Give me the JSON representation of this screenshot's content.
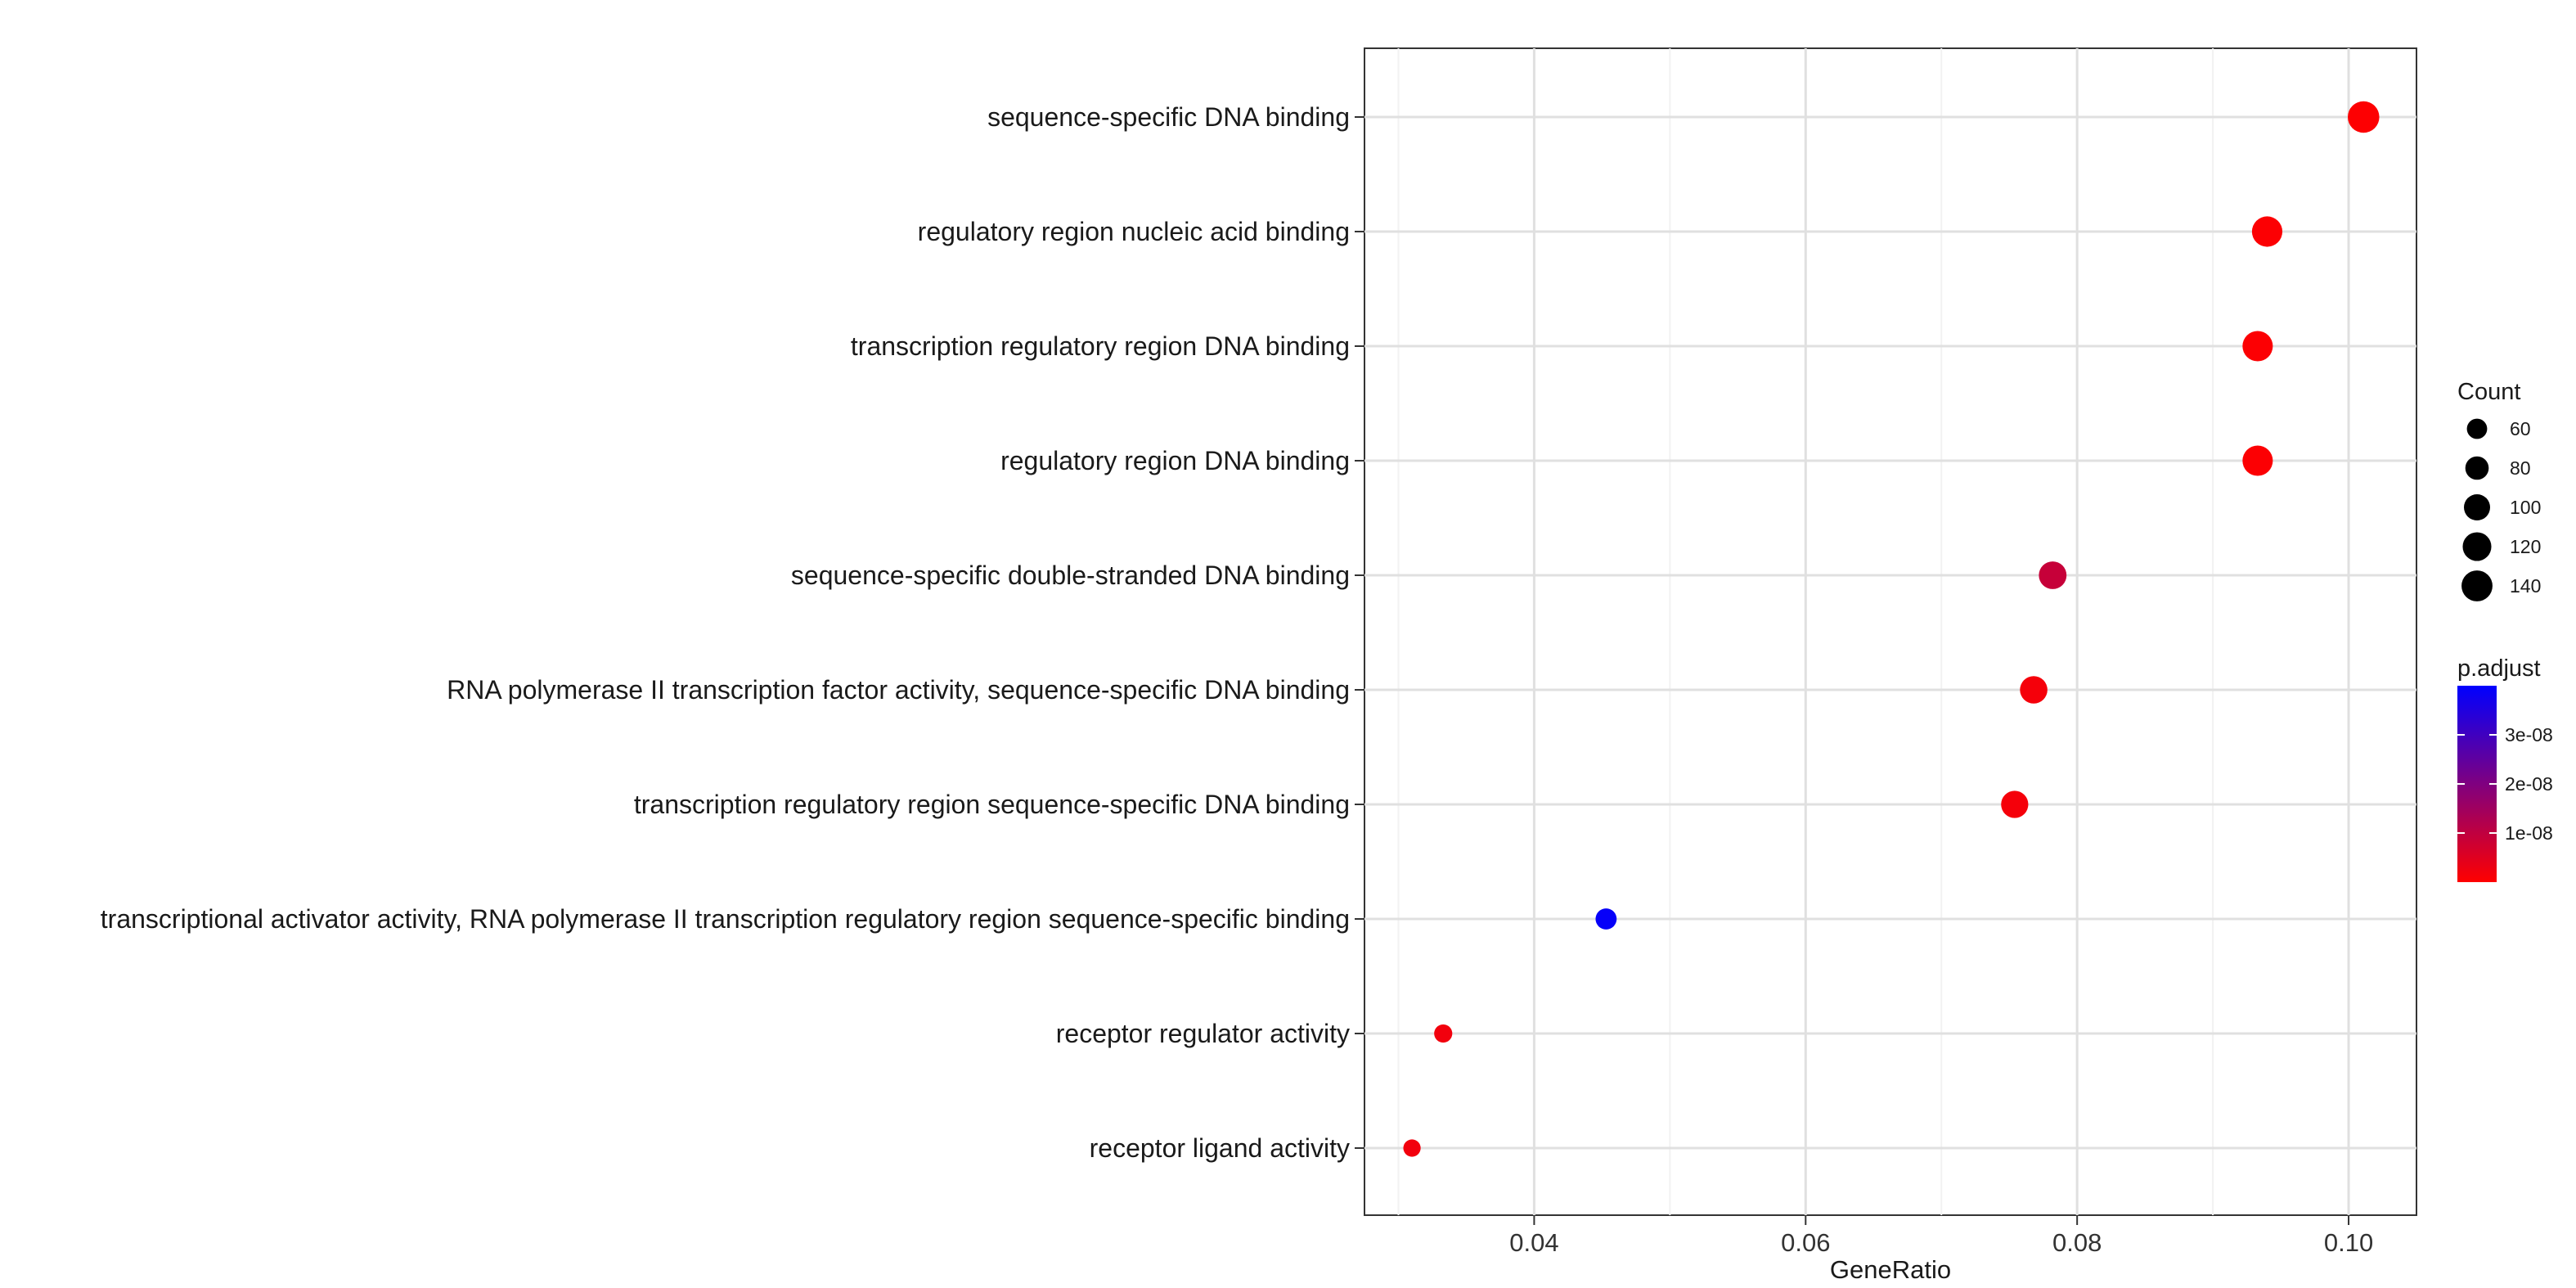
{
  "chart_data": {
    "type": "scatter",
    "xlabel": "GeneRatio",
    "ylabel": "",
    "xlim": [
      0.0275,
      0.105
    ],
    "x_ticks": [
      "0.04",
      "0.06",
      "0.08",
      "0.10"
    ],
    "grid": true,
    "legend_position": "right",
    "categories": [
      "sequence-specific DNA binding",
      "regulatory region nucleic acid binding",
      "transcription regulatory region DNA binding",
      "regulatory region DNA binding",
      "sequence-specific double-stranded DNA binding",
      "RNA polymerase II transcription factor activity, sequence-specific DNA binding",
      "transcription regulatory region sequence-specific DNA binding",
      "transcriptional activator activity, RNA polymerase II transcription regulatory region sequence-specific binding",
      "receptor regulator activity",
      "receptor ligand activity"
    ],
    "points": [
      {
        "x": 0.1011,
        "count": 145,
        "p_adjust": 3e-10
      },
      {
        "x": 0.094,
        "count": 135,
        "p_adjust": 4e-10
      },
      {
        "x": 0.0933,
        "count": 134,
        "p_adjust": 5e-10
      },
      {
        "x": 0.0933,
        "count": 134,
        "p_adjust": 5e-10
      },
      {
        "x": 0.0782,
        "count": 112,
        "p_adjust": 9e-09
      },
      {
        "x": 0.0768,
        "count": 110,
        "p_adjust": 1.5e-09
      },
      {
        "x": 0.0754,
        "count": 108,
        "p_adjust": 1.5e-09
      },
      {
        "x": 0.0453,
        "count": 65,
        "p_adjust": 3.9e-08
      },
      {
        "x": 0.0333,
        "count": 48,
        "p_adjust": 2e-09
      },
      {
        "x": 0.031,
        "count": 44,
        "p_adjust": 2e-09
      }
    ],
    "size_legend": {
      "title": "Count",
      "values": [
        60,
        80,
        100,
        120,
        140
      ],
      "labels": [
        "60",
        "80",
        "100",
        "120",
        "140"
      ],
      "color": "#000000"
    },
    "color_legend": {
      "title": "p.adjust",
      "range": [
        0,
        4e-08
      ],
      "ticks": [
        1e-08,
        2e-08,
        3e-08
      ],
      "tick_labels": [
        "1e-08",
        "2e-08",
        "3e-08"
      ],
      "low_color": "#ff0000",
      "high_color": "#0000ff"
    }
  }
}
